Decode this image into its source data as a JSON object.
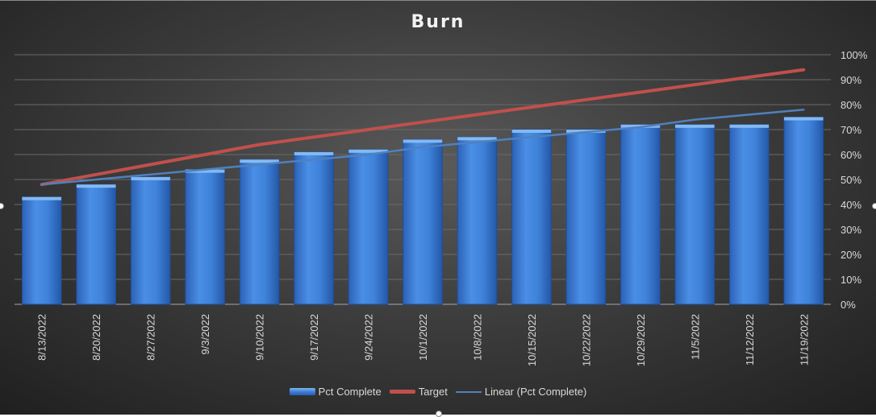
{
  "chart_data": {
    "type": "bar",
    "title": "Burn",
    "categories": [
      "8/13/2022",
      "8/20/2022",
      "8/27/2022",
      "9/3/2022",
      "9/10/2022",
      "9/17/2022",
      "9/24/2022",
      "10/1/2022",
      "10/8/2022",
      "10/15/2022",
      "10/22/2022",
      "10/29/2022",
      "11/5/2022",
      "11/12/2022",
      "11/19/2022"
    ],
    "series": [
      {
        "name": "Pct Complete",
        "kind": "bar",
        "color": "#3a7bd5",
        "values": [
          0.43,
          0.48,
          0.51,
          0.54,
          0.58,
          0.61,
          0.62,
          0.66,
          0.67,
          0.7,
          0.7,
          0.72,
          0.72,
          0.72,
          0.75
        ]
      },
      {
        "name": "Target",
        "kind": "line",
        "color": "#c0504d",
        "values": [
          0.48,
          0.52,
          0.56,
          0.6,
          0.64,
          0.67,
          0.7,
          0.73,
          0.76,
          0.79,
          0.82,
          0.85,
          0.88,
          0.91,
          0.94
        ]
      },
      {
        "name": "Linear (Pct Complete)",
        "kind": "trendline",
        "color": "#4f81bd",
        "values": [
          0.48,
          0.5,
          0.52,
          0.54,
          0.56,
          0.58,
          0.6,
          0.63,
          0.65,
          0.67,
          0.69,
          0.71,
          0.74,
          0.76,
          0.78
        ]
      }
    ],
    "y_axis": {
      "position": "right",
      "min": 0,
      "max": 1,
      "step": 0.1,
      "tick_labels": [
        "0%",
        "10%",
        "20%",
        "30%",
        "40%",
        "50%",
        "60%",
        "70%",
        "80%",
        "90%",
        "100%"
      ]
    },
    "grid": true,
    "legend": "bottom"
  }
}
